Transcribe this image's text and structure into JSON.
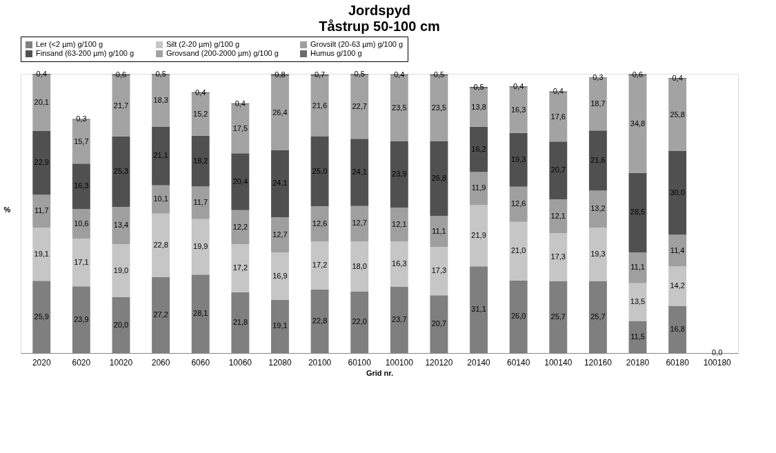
{
  "chart_data": {
    "type": "bar",
    "title": "Jordspyd",
    "subtitle": "Tåstrup 50-100 cm",
    "ylabel": "%",
    "xlabel": "Grid nr.",
    "stacked": true,
    "legend": "top",
    "categories": [
      "2020",
      "6020",
      "10020",
      "2060",
      "6060",
      "10060",
      "12080",
      "20100",
      "60100",
      "100100",
      "120120",
      "20140",
      "60140",
      "100140",
      "120160",
      "20180",
      "60180",
      "100180"
    ],
    "series": [
      {
        "name": "Ler (<2 µm) g/100 g",
        "color": "#7f7f7f",
        "values": [
          25.9,
          23.9,
          20.0,
          27.2,
          28.1,
          21.8,
          19.1,
          22.8,
          22.0,
          23.7,
          20.7,
          31.1,
          26.0,
          25.7,
          25.7,
          11.5,
          16.8,
          0
        ],
        "value_labels": [
          "25,9",
          "23,9",
          "20,0",
          "27,2",
          "28,1",
          "21,8",
          "19,1",
          "22,8",
          "22,0",
          "23,7",
          "20,7",
          "31,1",
          "26,0",
          "25,7",
          "25,7",
          "11,5",
          "16,8",
          "0,0"
        ]
      },
      {
        "name": "Silt (2-20 µm) g/100 g",
        "color": "#c6c6c6",
        "values": [
          19.1,
          17.1,
          19.0,
          22.8,
          19.9,
          17.2,
          16.9,
          17.2,
          18.0,
          16.3,
          17.3,
          21.9,
          21.0,
          17.3,
          19.3,
          13.5,
          14.2,
          0
        ],
        "value_labels": [
          "19,1",
          "17,1",
          "19,0",
          "22,8",
          "19,9",
          "17,2",
          "16,9",
          "17,2",
          "18,0",
          "16,3",
          "17,3",
          "21,9",
          "21,0",
          "17,3",
          "19,3",
          "13,5",
          "14,2",
          null
        ]
      },
      {
        "name": "Grovsilt (20-63 µm) g/100 g",
        "color": "#9f9f9f",
        "values": [
          11.7,
          10.6,
          13.4,
          10.1,
          11.7,
          12.2,
          12.7,
          12.6,
          12.7,
          12.1,
          11.1,
          11.9,
          12.6,
          12.1,
          13.2,
          11.1,
          11.4,
          0
        ],
        "value_labels": [
          "11,7",
          "10,6",
          "13,4",
          "10,1",
          "11,7",
          "12,2",
          "12,7",
          "12,6",
          "12,7",
          "12,1",
          "11,1",
          "11,9",
          "12,6",
          "12,1",
          "13,2",
          "11,1",
          "11,4",
          null
        ]
      },
      {
        "name": "Finsand (63-200 µm) g/100 g",
        "color": "#505050",
        "values": [
          22.9,
          16.3,
          25.3,
          21.1,
          18.2,
          20.4,
          24.1,
          25.0,
          24.1,
          23.9,
          26.8,
          16.2,
          19.3,
          20.7,
          21.6,
          28.5,
          30.0,
          0
        ],
        "value_labels": [
          "22,9",
          "16,3",
          "25,3",
          "21,1",
          "18,2",
          "20,4",
          "24,1",
          "25,0",
          "24,1",
          "23,9",
          "26,8",
          "16,2",
          "19,3",
          "20,7",
          "21,6",
          "28,5",
          "30,0",
          null
        ]
      },
      {
        "name": "Grovsand (200-2000 µm) g/100 g",
        "color": "#a3a3a3",
        "values": [
          20.1,
          15.7,
          21.7,
          18.3,
          15.2,
          17.5,
          26.4,
          21.6,
          22.7,
          23.5,
          23.5,
          13.8,
          16.3,
          17.6,
          18.7,
          34.8,
          25.8,
          0
        ],
        "value_labels": [
          "20,1",
          "15,7",
          "21,7",
          "18,3",
          "15,2",
          "17,5",
          "26,4",
          "21,6",
          "22,7",
          "23,5",
          "23,5",
          "13,8",
          "16,3",
          "17,6",
          "18,7",
          "34,8",
          "25,8",
          null
        ]
      },
      {
        "name": "Humus g/100 g",
        "color": "#6b6b6b",
        "values": [
          0.4,
          0.3,
          0.6,
          0.5,
          0.4,
          0.4,
          0.8,
          0.7,
          0.5,
          0.4,
          0.5,
          0.5,
          0.4,
          0.4,
          0.3,
          0.6,
          0.4,
          0
        ],
        "value_labels": [
          "0,4",
          "0,3",
          "0,6",
          "0,5",
          "0,4",
          "0,4",
          "0,8",
          "0,7",
          "0,5",
          "0,4",
          "0,5",
          "0,5",
          "0,4",
          "0,4",
          "0,3",
          "0,6",
          "0,4",
          null
        ]
      }
    ]
  }
}
